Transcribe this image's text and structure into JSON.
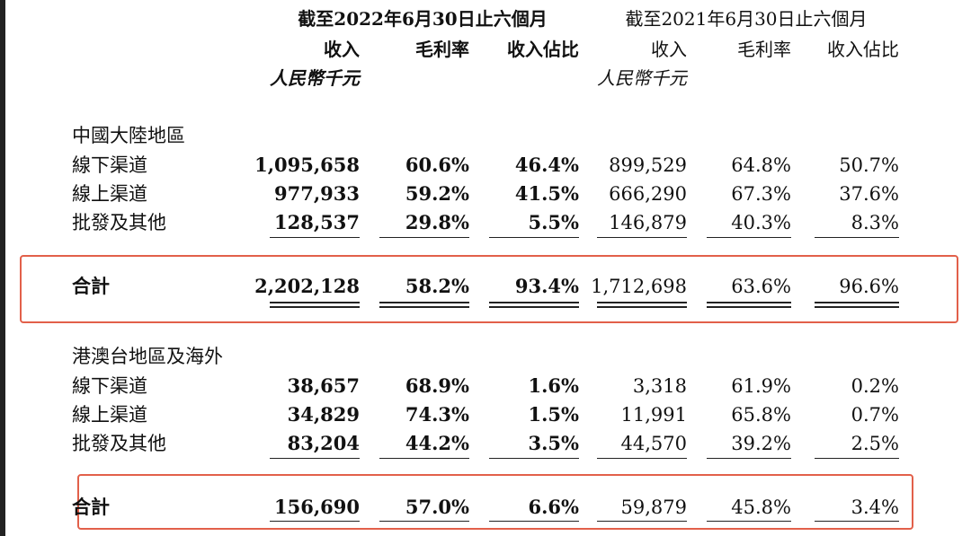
{
  "periods": {
    "p2022": "截至2022年6月30日止六個月",
    "p2021": "截至2021年6月30日止六個月"
  },
  "columns": {
    "revenue": "收入",
    "margin": "毛利率",
    "share": "收入佔比",
    "unit": "人民幣千元"
  },
  "sections": [
    {
      "title": "中國大陸地區",
      "rows": [
        {
          "label": "線下渠道",
          "rev22": "1,095,658",
          "gm22": "60.6%",
          "sh22": "46.4%",
          "rev21": "899,529",
          "gm21": "64.8%",
          "sh21": "50.7%"
        },
        {
          "label": "線上渠道",
          "rev22": "977,933",
          "gm22": "59.2%",
          "sh22": "41.5%",
          "rev21": "666,290",
          "gm21": "67.3%",
          "sh21": "37.6%"
        },
        {
          "label": "批發及其他",
          "rev22": "128,537",
          "gm22": "29.8%",
          "sh22": "5.5%",
          "rev21": "146,879",
          "gm21": "40.3%",
          "sh21": "8.3%"
        }
      ],
      "total": {
        "label": "合計",
        "rev22": "2,202,128",
        "gm22": "58.2%",
        "sh22": "93.4%",
        "rev21": "1,712,698",
        "gm21": "63.6%",
        "sh21": "96.6%"
      }
    },
    {
      "title": "港澳台地區及海外",
      "rows": [
        {
          "label": "線下渠道",
          "rev22": "38,657",
          "gm22": "68.9%",
          "sh22": "1.6%",
          "rev21": "3,318",
          "gm21": "61.9%",
          "sh21": "0.2%"
        },
        {
          "label": "線上渠道",
          "rev22": "34,829",
          "gm22": "74.3%",
          "sh22": "1.5%",
          "rev21": "11,991",
          "gm21": "65.8%",
          "sh21": "0.7%"
        },
        {
          "label": "批發及其他",
          "rev22": "83,204",
          "gm22": "44.2%",
          "sh22": "3.5%",
          "rev21": "44,570",
          "gm21": "39.2%",
          "sh21": "2.5%"
        }
      ],
      "total": {
        "label": "合計",
        "rev22": "156,690",
        "gm22": "57.0%",
        "sh22": "6.6%",
        "rev21": "59,879",
        "gm21": "45.8%",
        "sh21": "3.4%"
      }
    }
  ]
}
